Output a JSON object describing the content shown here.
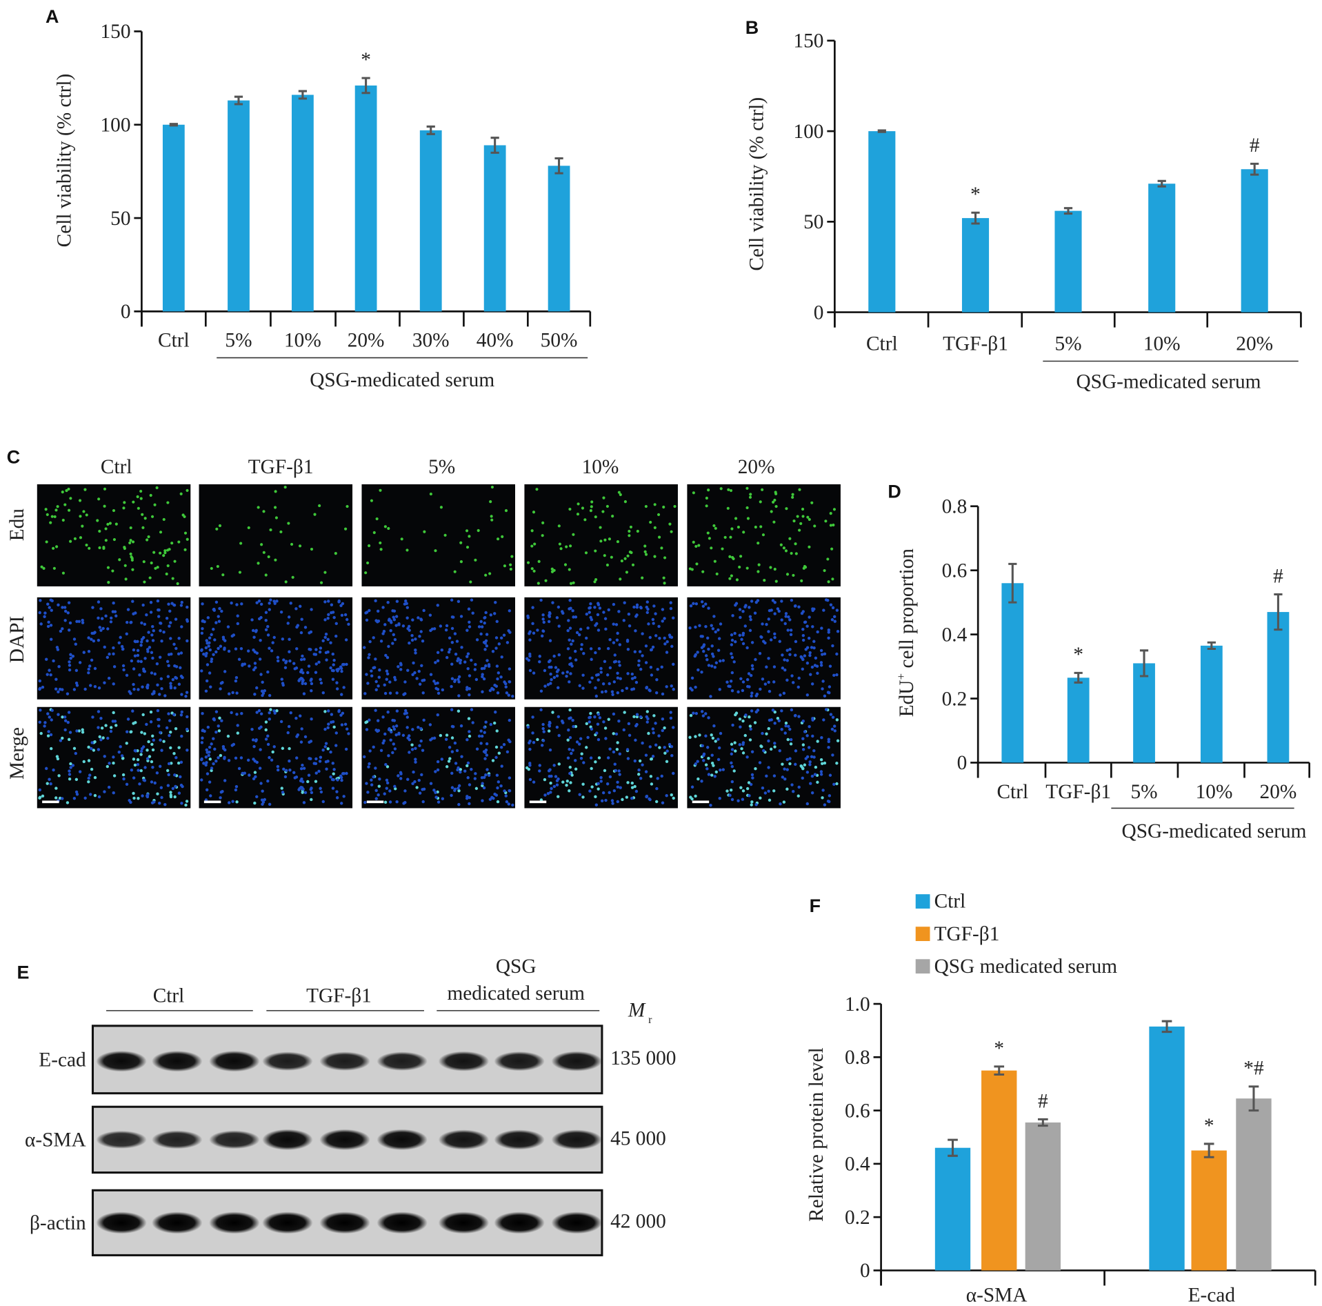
{
  "colors": {
    "blue": "#1fa2db",
    "orange": "#f0941f",
    "gray": "#a6a6a6",
    "error": "#555555"
  },
  "chart_data": [
    {
      "panel": "A",
      "type": "bar",
      "categories": [
        "Ctrl",
        "5%",
        "10%",
        "20%",
        "30%",
        "40%",
        "50%"
      ],
      "values": [
        100,
        113,
        116,
        121,
        97,
        89,
        78
      ],
      "errors": [
        0.4,
        2,
        2,
        4,
        2,
        4,
        4
      ],
      "annotations": [
        "",
        "",
        "",
        "*",
        "",
        "",
        ""
      ],
      "ylabel": "Cell viability (% ctrl)",
      "ylim": [
        0,
        150
      ],
      "yticks": [
        "0",
        "50",
        "100",
        "150"
      ],
      "group_label": "QSG-medicated serum"
    },
    {
      "panel": "B",
      "type": "bar",
      "categories": [
        "Ctrl",
        "TGF-β1",
        "5%",
        "10%",
        "20%"
      ],
      "values": [
        100,
        52,
        56,
        71,
        79
      ],
      "errors": [
        0.4,
        3,
        1.5,
        1.5,
        3
      ],
      "annotations": [
        "",
        "*",
        "",
        "",
        "#"
      ],
      "ylabel": "Cell viability (% ctrl)",
      "ylim": [
        0,
        150
      ],
      "yticks": [
        "0",
        "50",
        "100",
        "150"
      ],
      "group_label": "QSG-medicated serum"
    },
    {
      "panel": "D",
      "type": "bar",
      "categories": [
        "Ctrl",
        "TGF-β1",
        "5%",
        "10%",
        "20%"
      ],
      "values": [
        0.56,
        0.265,
        0.31,
        0.365,
        0.47
      ],
      "errors": [
        0.06,
        0.015,
        0.04,
        0.01,
        0.055
      ],
      "annotations": [
        "",
        "*",
        "",
        "",
        "#"
      ],
      "ylabel": "EdU",
      "ylabel_sup": "+",
      "ylabel_rest": " cell proportion",
      "ylim": [
        0,
        0.8
      ],
      "yticks": [
        "0",
        "0.2",
        "0.4",
        "0.6",
        "0.8"
      ],
      "group_label": "QSG-medicated serum"
    },
    {
      "panel": "F",
      "type": "bar",
      "categories": [
        "α-SMA",
        "E-cad"
      ],
      "series": [
        {
          "name": "Ctrl",
          "values": [
            0.46,
            0.915
          ],
          "errors": [
            0.03,
            0.02
          ],
          "annotations": [
            "",
            ""
          ]
        },
        {
          "name": "TGF-β1",
          "values": [
            0.75,
            0.45
          ],
          "errors": [
            0.015,
            0.025
          ],
          "annotations": [
            "*",
            "*"
          ]
        },
        {
          "name": "QSG medicated serum",
          "values": [
            0.555,
            0.645
          ],
          "errors": [
            0.012,
            0.045
          ],
          "annotations": [
            "#",
            "*#"
          ]
        }
      ],
      "ylabel": "Relative protein level",
      "ylim": [
        0,
        1.0
      ],
      "yticks": [
        "0",
        "0.2",
        "0.4",
        "0.6",
        "0.8",
        "1.0"
      ],
      "legend": "top"
    }
  ],
  "panel_c": {
    "letter": "C",
    "columns": [
      "Ctrl",
      "TGF-β1",
      "5%",
      "10%",
      "20%"
    ],
    "rows": [
      "Edu",
      "DAPI",
      "Merge"
    ],
    "edu_density": [
      110,
      35,
      40,
      85,
      100
    ]
  },
  "panel_e": {
    "letter": "E",
    "groups": [
      "Ctrl",
      "TGF-β1"
    ],
    "group3_line1": "QSG",
    "group3_line2": "medicated serum",
    "mr_label": "M",
    "mr_sub": "r",
    "blots": [
      {
        "label": "E-cad",
        "mw": "135 000",
        "intensity": [
          0.9,
          0.9,
          0.9,
          0.7,
          0.7,
          0.7,
          0.8,
          0.75,
          0.8
        ]
      },
      {
        "label": "α-SMA",
        "mw": "45 000",
        "intensity": [
          0.6,
          0.65,
          0.65,
          0.9,
          0.9,
          0.9,
          0.8,
          0.8,
          0.8
        ]
      },
      {
        "label": "β-actin",
        "mw": "42 000",
        "intensity": [
          1,
          1,
          1,
          1,
          1,
          1,
          1,
          1,
          1
        ]
      }
    ]
  },
  "letters": {
    "a": "A",
    "b": "B",
    "d": "D",
    "f": "F"
  }
}
